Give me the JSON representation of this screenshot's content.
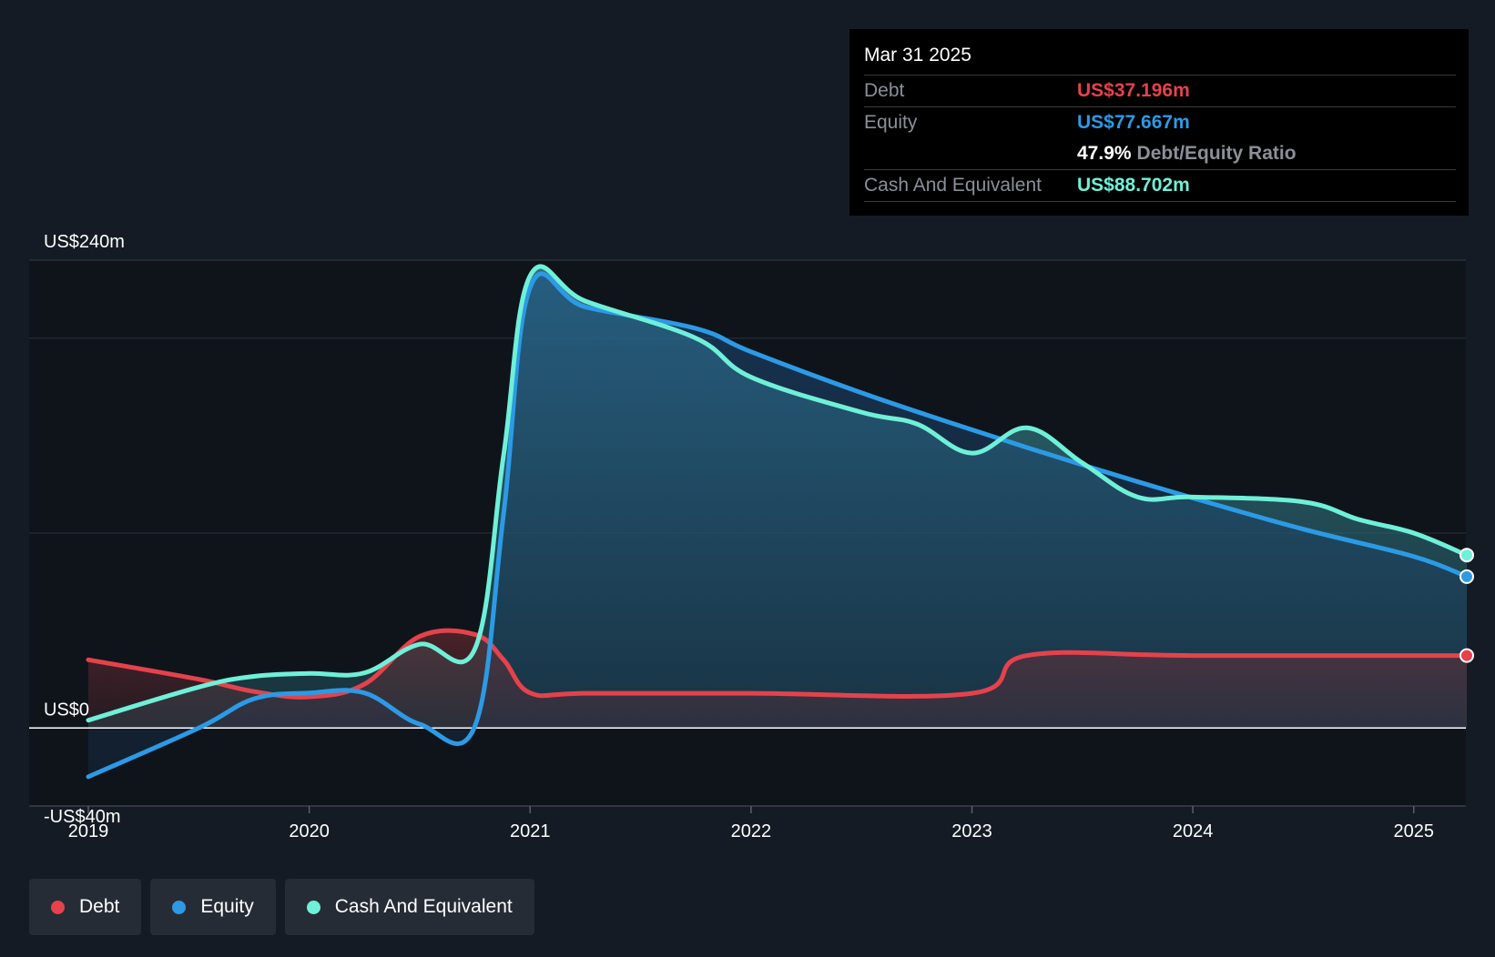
{
  "tooltip": {
    "date": "Mar 31 2025",
    "rows": [
      {
        "label": "Debt",
        "value": "US$37.196m",
        "color": "#e5424b"
      },
      {
        "label": "Equity",
        "value": "US$77.667m",
        "color": "#2c9ae5"
      },
      {
        "label": "",
        "ratio_value": "47.9%",
        "ratio_label": "Debt/Equity Ratio"
      },
      {
        "label": "Cash And Equivalent",
        "value": "US$88.702m",
        "color": "#6ff0d8"
      }
    ]
  },
  "legend": [
    {
      "label": "Debt",
      "color": "#e5424b"
    },
    {
      "label": "Equity",
      "color": "#2c9ae5"
    },
    {
      "label": "Cash And Equivalent",
      "color": "#6ff0d8"
    }
  ],
  "chart_data": {
    "type": "area",
    "x_labels": [
      "2019",
      "2020",
      "2021",
      "2022",
      "2023",
      "2024",
      "2025"
    ],
    "y_labels": [
      "US$240m",
      "US$0",
      "-US$40m"
    ],
    "ylim": [
      -40,
      240
    ],
    "xlim": [
      2019.0,
      2025.24
    ],
    "grid": true,
    "series": [
      {
        "name": "Debt",
        "color": "#e5424b",
        "points": [
          [
            2019.0,
            35
          ],
          [
            2019.5,
            25
          ],
          [
            2019.75,
            18.7
          ],
          [
            2020.0,
            16
          ],
          [
            2020.25,
            22.5
          ],
          [
            2020.5,
            47
          ],
          [
            2020.75,
            48
          ],
          [
            2020.88,
            35
          ],
          [
            2021.0,
            18
          ],
          [
            2021.25,
            17.8
          ],
          [
            2022.0,
            17.8
          ],
          [
            2023.0,
            17.8
          ],
          [
            2023.25,
            37.2
          ],
          [
            2024.0,
            37.2
          ],
          [
            2025.24,
            37.196
          ]
        ]
      },
      {
        "name": "Equity",
        "color": "#2c9ae5",
        "points": [
          [
            2019.0,
            -25
          ],
          [
            2019.5,
            0
          ],
          [
            2019.75,
            15
          ],
          [
            2020.0,
            18
          ],
          [
            2020.25,
            18
          ],
          [
            2020.5,
            2
          ],
          [
            2020.75,
            1
          ],
          [
            2020.88,
            110
          ],
          [
            2021.0,
            226
          ],
          [
            2021.25,
            216
          ],
          [
            2021.75,
            205
          ],
          [
            2022.0,
            193
          ],
          [
            2022.5,
            172
          ],
          [
            2023.0,
            153
          ],
          [
            2023.5,
            135
          ],
          [
            2024.0,
            118
          ],
          [
            2024.5,
            102
          ],
          [
            2025.0,
            88
          ],
          [
            2025.24,
            77.667
          ]
        ]
      },
      {
        "name": "Cash And Equivalent",
        "color": "#6ff0d8",
        "points": [
          [
            2019.0,
            4
          ],
          [
            2019.5,
            21
          ],
          [
            2019.75,
            26.5
          ],
          [
            2020.0,
            28
          ],
          [
            2020.25,
            28.3
          ],
          [
            2020.5,
            43
          ],
          [
            2020.75,
            40.6
          ],
          [
            2020.88,
            140
          ],
          [
            2021.0,
            232
          ],
          [
            2021.25,
            219
          ],
          [
            2021.75,
            200
          ],
          [
            2022.0,
            180
          ],
          [
            2022.5,
            162
          ],
          [
            2022.75,
            156
          ],
          [
            2023.0,
            141
          ],
          [
            2023.25,
            154
          ],
          [
            2023.5,
            136
          ],
          [
            2023.75,
            118.5
          ],
          [
            2024.0,
            118.5
          ],
          [
            2024.5,
            116
          ],
          [
            2024.75,
            107
          ],
          [
            2025.0,
            100
          ],
          [
            2025.24,
            88.702
          ]
        ]
      }
    ]
  }
}
